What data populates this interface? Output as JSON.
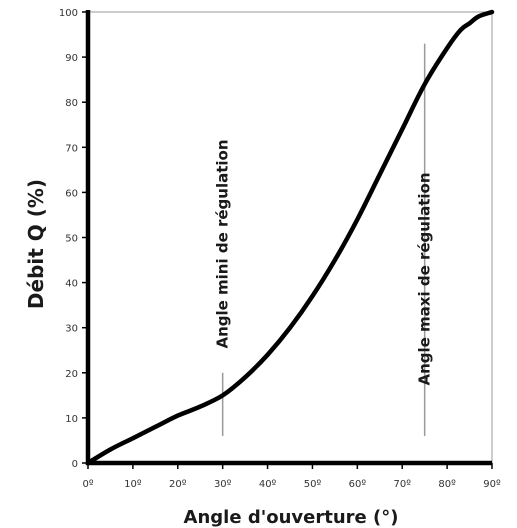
{
  "chart_data": {
    "type": "line",
    "xlabel": "Angle d'ouverture (°)",
    "ylabel": "Débit Q (%)",
    "xlim": [
      0,
      90
    ],
    "ylim": [
      0,
      100
    ],
    "x_ticks": [
      0,
      10,
      20,
      30,
      40,
      50,
      60,
      70,
      80,
      90
    ],
    "x_tick_labels": [
      "0º",
      "10º",
      "20º",
      "30º",
      "40º",
      "50º",
      "60º",
      "70º",
      "80º",
      "90º"
    ],
    "y_ticks": [
      0,
      10,
      20,
      30,
      40,
      50,
      60,
      70,
      80,
      90,
      100
    ],
    "y_tick_labels": [
      "0",
      "10",
      "20",
      "30",
      "40",
      "50",
      "60",
      "70",
      "80",
      "90",
      "100"
    ],
    "grid": false,
    "series": [
      {
        "x": [
          0,
          5,
          10,
          15,
          20,
          25,
          30,
          35,
          40,
          45,
          50,
          55,
          60,
          65,
          70,
          75,
          80,
          83,
          85,
          87,
          90
        ],
        "y": [
          0,
          3,
          5.5,
          8,
          10.5,
          12.5,
          15,
          19,
          24,
          30,
          37,
          45,
          54,
          64,
          74,
          84,
          92,
          96,
          97.5,
          99,
          100
        ]
      }
    ],
    "annotations": [
      {
        "text": "Angle mini de régulation",
        "x": 30,
        "y_range": [
          6,
          20
        ]
      },
      {
        "text": "Angle maxi de régulation",
        "x": 75,
        "y_range": [
          6,
          93
        ]
      }
    ],
    "colors": {
      "curve": "#000000",
      "axis": "#000000",
      "frame": "#999999",
      "marker_line": "#9a9a9a"
    }
  }
}
